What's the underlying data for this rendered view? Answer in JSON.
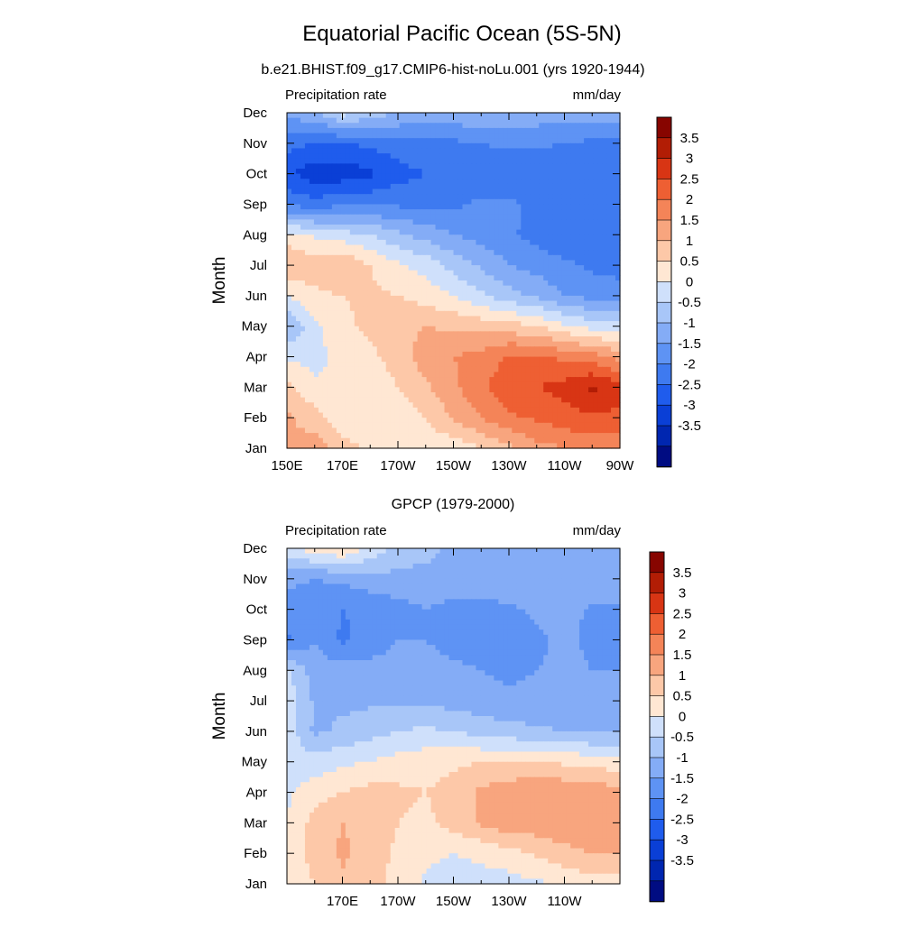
{
  "figure": {
    "title": "Equatorial Pacific Ocean (5S-5N)"
  },
  "chart_data": [
    {
      "type": "heatmap",
      "title": "b.e21.BHIST.f09_g17.CMIP6-hist-noLu.001 (yrs 1920-1944)",
      "left_string": "Precipitation rate",
      "right_string": "mm/day",
      "ylabel": "Month",
      "xlabel": "",
      "x_ticks": [
        "150E",
        "170E",
        "170W",
        "150W",
        "130W",
        "110W",
        "90W"
      ],
      "x_tick_values": [
        150,
        170,
        190,
        210,
        230,
        250,
        270
      ],
      "x_range": [
        150,
        270
      ],
      "y_ticks": [
        "Jan",
        "Feb",
        "Mar",
        "Apr",
        "May",
        "Jun",
        "Jul",
        "Aug",
        "Sep",
        "Oct",
        "Nov",
        "Dec"
      ],
      "x": [
        150,
        160,
        170,
        180,
        190,
        200,
        210,
        220,
        230,
        240,
        250,
        260,
        270
      ],
      "z": [
        [
          1.6,
          1.8,
          1.2,
          0.9,
          0.6,
          0.7,
          0.6,
          1.0,
          1.4,
          1.8,
          2.0,
          2.2,
          2.2
        ],
        [
          1.6,
          1.2,
          0.7,
          0.5,
          0.6,
          1.0,
          1.6,
          2.0,
          2.4,
          2.6,
          2.8,
          2.9,
          2.9
        ],
        [
          1.2,
          0.6,
          0.6,
          0.7,
          1.0,
          1.4,
          1.9,
          2.4,
          2.8,
          3.0,
          3.2,
          3.6,
          3.2
        ],
        [
          0.4,
          0.3,
          0.7,
          0.9,
          1.2,
          1.8,
          2.0,
          2.2,
          2.6,
          2.6,
          2.4,
          2.2,
          1.8
        ],
        [
          -0.6,
          0.4,
          0.9,
          1.1,
          1.3,
          1.5,
          1.4,
          1.3,
          1.2,
          1.0,
          0.6,
          0.3,
          0.2
        ],
        [
          0.5,
          0.9,
          1.0,
          1.1,
          1.0,
          0.8,
          0.5,
          0.1,
          -0.3,
          -0.6,
          -1.0,
          -1.2,
          -1.4
        ],
        [
          1.6,
          1.2,
          1.5,
          1.0,
          0.6,
          0.3,
          -0.2,
          -0.6,
          -1.0,
          -1.2,
          -1.4,
          -1.6,
          -1.6
        ],
        [
          0.7,
          0.4,
          0.2,
          0.0,
          -0.4,
          -0.7,
          -1.0,
          -1.2,
          -1.4,
          -1.7,
          -1.9,
          -2.0,
          -2.0
        ],
        [
          -1.6,
          -1.8,
          -1.6,
          -1.6,
          -1.6,
          -1.6,
          -1.6,
          -1.4,
          -1.4,
          -1.6,
          -1.8,
          -2.0,
          -1.8
        ],
        [
          -2.4,
          -2.8,
          -2.8,
          -2.6,
          -2.2,
          -2.0,
          -1.9,
          -1.9,
          -1.8,
          -2.0,
          -2.0,
          -2.0,
          -1.9
        ],
        [
          -1.8,
          -2.0,
          -2.0,
          -1.9,
          -1.7,
          -1.6,
          -1.6,
          -1.5,
          -1.4,
          -1.4,
          -1.5,
          -1.6,
          -1.6
        ],
        [
          -0.8,
          -0.6,
          0.2,
          -0.2,
          -0.5,
          -0.6,
          -0.6,
          -0.6,
          -0.6,
          -0.7,
          -0.8,
          -0.8,
          -0.8
        ]
      ],
      "colorbar": {
        "labels": [
          "3.5",
          "3",
          "2.5",
          "2",
          "1.5",
          "1",
          "0.5",
          "0",
          "-0.5",
          "-1",
          "-1.5",
          "-2",
          "-2.5",
          "-3",
          "-3.5"
        ],
        "levels": [
          3.5,
          3,
          2.5,
          2,
          1.5,
          1,
          0.5,
          0,
          -0.5,
          -1,
          -1.5,
          -2,
          -2.5,
          -3,
          -3.5
        ]
      }
    },
    {
      "type": "heatmap",
      "title": "GPCP (1979-2000)",
      "left_string": "Precipitation rate",
      "right_string": "mm/day",
      "ylabel": "Month",
      "xlabel": "",
      "x_ticks": [
        "170E",
        "170W",
        "150W",
        "130W",
        "110W"
      ],
      "x_tick_values": [
        170,
        190,
        210,
        230,
        250
      ],
      "x_range": [
        150,
        270
      ],
      "y_ticks": [
        "Jan",
        "Feb",
        "Mar",
        "Apr",
        "May",
        "Jun",
        "Jul",
        "Aug",
        "Sep",
        "Oct",
        "Nov",
        "Dec"
      ],
      "x": [
        150,
        160,
        170,
        180,
        190,
        200,
        210,
        220,
        230,
        240,
        250,
        260,
        270
      ],
      "z": [
        [
          0.6,
          1.0,
          1.4,
          1.2,
          0.8,
          0.4,
          0.3,
          0.3,
          0.3,
          0.4,
          0.6,
          0.8,
          0.8
        ],
        [
          0.6,
          1.2,
          1.6,
          1.3,
          0.9,
          0.6,
          0.5,
          0.6,
          0.8,
          1.1,
          1.3,
          1.5,
          1.5
        ],
        [
          0.5,
          1.2,
          1.5,
          1.3,
          1.0,
          0.9,
          1.2,
          1.6,
          1.9,
          1.8,
          2.0,
          2.0,
          1.8
        ],
        [
          0.4,
          0.8,
          1.0,
          1.2,
          1.1,
          1.0,
          1.2,
          1.6,
          1.8,
          2.0,
          1.9,
          1.8,
          1.7
        ],
        [
          0.2,
          0.2,
          0.4,
          0.5,
          0.7,
          0.8,
          0.9,
          1.0,
          1.0,
          1.0,
          0.9,
          0.8,
          0.7
        ],
        [
          0.3,
          -0.6,
          -0.4,
          -0.2,
          0.0,
          0.1,
          0.0,
          -0.2,
          -0.3,
          -0.4,
          -0.5,
          -0.6,
          -0.6
        ],
        [
          0.4,
          -0.6,
          -0.6,
          -0.6,
          -0.6,
          -0.6,
          -0.7,
          -0.8,
          -0.9,
          -0.9,
          -0.9,
          -1.0,
          -1.0
        ],
        [
          0.1,
          -0.8,
          -0.8,
          -0.8,
          -0.8,
          -0.8,
          -0.9,
          -1.0,
          -1.1,
          -1.0,
          -0.9,
          -1.0,
          -1.0
        ],
        [
          -1.6,
          -1.0,
          -1.6,
          -1.3,
          -1.0,
          -1.0,
          -1.2,
          -1.2,
          -1.2,
          -1.1,
          -0.9,
          -1.1,
          -1.1
        ],
        [
          -1.2,
          -1.3,
          -1.5,
          -1.4,
          -1.2,
          -1.0,
          -1.2,
          -1.2,
          -1.1,
          -0.9,
          -0.8,
          -1.1,
          -1.1
        ],
        [
          -0.9,
          -1.0,
          -0.9,
          -0.7,
          -0.6,
          -0.6,
          -0.6,
          -0.6,
          -0.6,
          -0.6,
          -0.6,
          -0.6,
          -0.6
        ],
        [
          0.4,
          0.8,
          1.0,
          0.4,
          -0.3,
          -0.4,
          -0.6,
          -0.6,
          -0.6,
          -0.6,
          -0.6,
          -0.6,
          -0.6
        ]
      ],
      "colorbar": {
        "labels": [
          "3.5",
          "3",
          "2.5",
          "2",
          "1.5",
          "1",
          "0.5",
          "0",
          "-0.5",
          "-1",
          "-1.5",
          "-2",
          "-2.5",
          "-3",
          "-3.5"
        ],
        "levels": [
          3.5,
          3,
          2.5,
          2,
          1.5,
          1,
          0.5,
          0,
          -0.5,
          -1,
          -1.5,
          -2,
          -2.5,
          -3,
          -3.5
        ]
      }
    }
  ],
  "colors": {
    "palette": [
      "#000c82",
      "#0026b0",
      "#0a3fd6",
      "#1f5ced",
      "#3e7af0",
      "#5e93f4",
      "#84acf6",
      "#a8c6f8",
      "#cfe0fb",
      "#ffe7d3",
      "#fdc8a8",
      "#f8a57e",
      "#f48458",
      "#ee5f33",
      "#d83514",
      "#b21d05",
      "#870500"
    ]
  }
}
